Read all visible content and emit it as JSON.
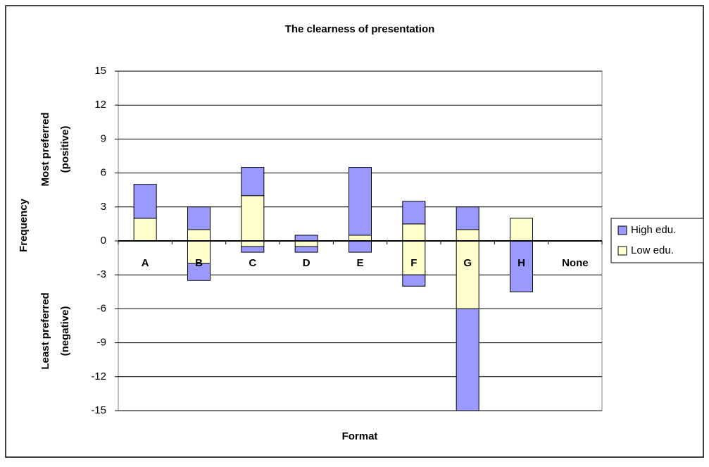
{
  "chart_data": {
    "type": "bar",
    "stacked": true,
    "title": "The clearness of presentation",
    "x_label": "Format",
    "y_label": "Frequency",
    "y_label_top": [
      "Most preferred",
      "(positive)"
    ],
    "y_label_bottom": [
      "Least preferred",
      "(negative)"
    ],
    "categories": [
      "A",
      "B",
      "C",
      "D",
      "E",
      "F",
      "G",
      "H",
      "None"
    ],
    "series": [
      {
        "name": "High edu.",
        "color": "#9999ff",
        "values": [
          3,
          2,
          2.5,
          0.5,
          6,
          2,
          2,
          0,
          0
        ],
        "negative_values": [
          0,
          -1.5,
          -0.5,
          -0.5,
          -1,
          -1,
          -9,
          -4.5,
          0
        ]
      },
      {
        "name": "Low edu.",
        "color": "#ffffcc",
        "values": [
          2,
          1,
          4,
          0,
          0.5,
          1.5,
          1,
          2,
          0
        ],
        "negative_values": [
          0,
          -2,
          -0.5,
          -0.5,
          0,
          -3,
          -6,
          0,
          0
        ]
      }
    ],
    "stack_order": [
      1,
      0
    ],
    "ylim": [
      -15,
      15
    ],
    "yticks": [
      -15,
      -12,
      -9,
      -6,
      -3,
      0,
      3,
      6,
      9,
      12,
      15
    ],
    "grid": true,
    "legend": "right"
  }
}
